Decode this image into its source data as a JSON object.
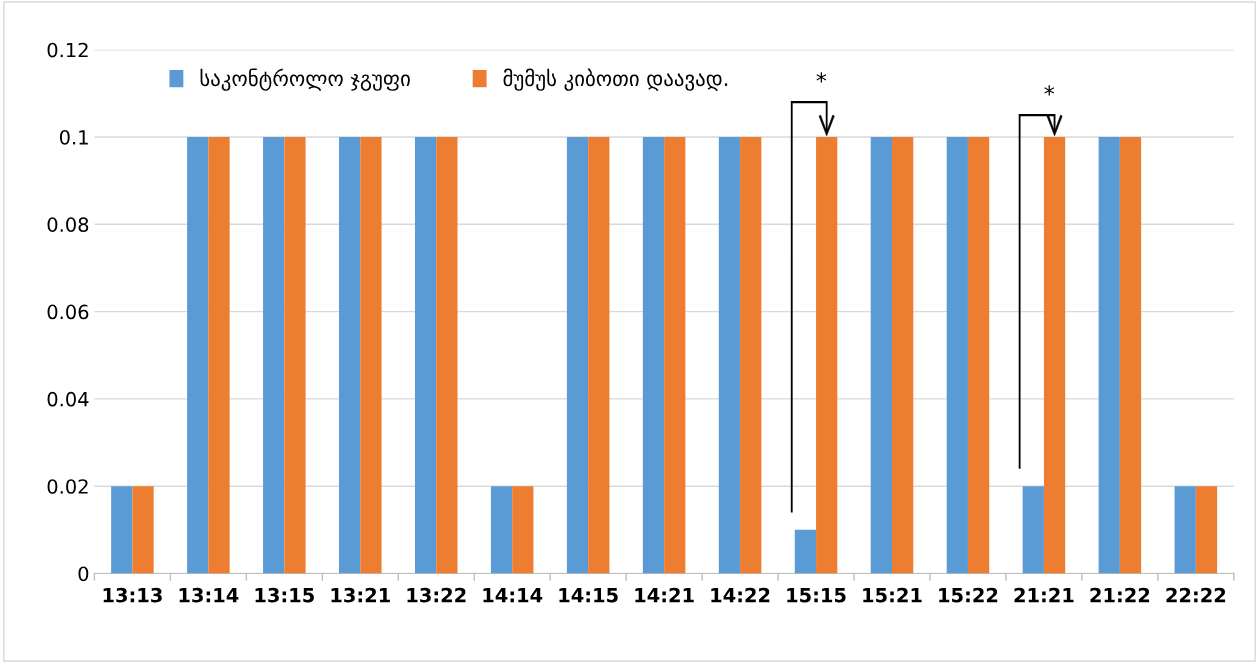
{
  "chart_data": {
    "type": "bar",
    "categories": [
      "13:13",
      "13:14",
      "13:15",
      "13:21",
      "13:22",
      "14:14",
      "14:15",
      "14:21",
      "14:22",
      "15:15",
      "15:21",
      "15:22",
      "21:21",
      "21:22",
      "22:22"
    ],
    "series": [
      {
        "name": "საკონტროლო ჯგუფი",
        "color": "#5b9bd5",
        "values": [
          0.02,
          0.1,
          0.1,
          0.1,
          0.1,
          0.02,
          0.1,
          0.1,
          0.1,
          0.01,
          0.1,
          0.1,
          0.02,
          0.1,
          0.02
        ]
      },
      {
        "name": "მუმუს კიბოთი დაავად.",
        "color": "#ed7d31",
        "values": [
          0.02,
          0.1,
          0.1,
          0.1,
          0.1,
          0.02,
          0.1,
          0.1,
          0.1,
          0.1,
          0.1,
          0.1,
          0.1,
          0.1,
          0.02
        ]
      }
    ],
    "ylim": [
      0,
      0.12
    ],
    "yticks": [
      0,
      0.02,
      0.04,
      0.06,
      0.08,
      0.1,
      0.12
    ],
    "grid": "y",
    "legend": "top left",
    "annotations": [
      "*",
      "*"
    ]
  }
}
